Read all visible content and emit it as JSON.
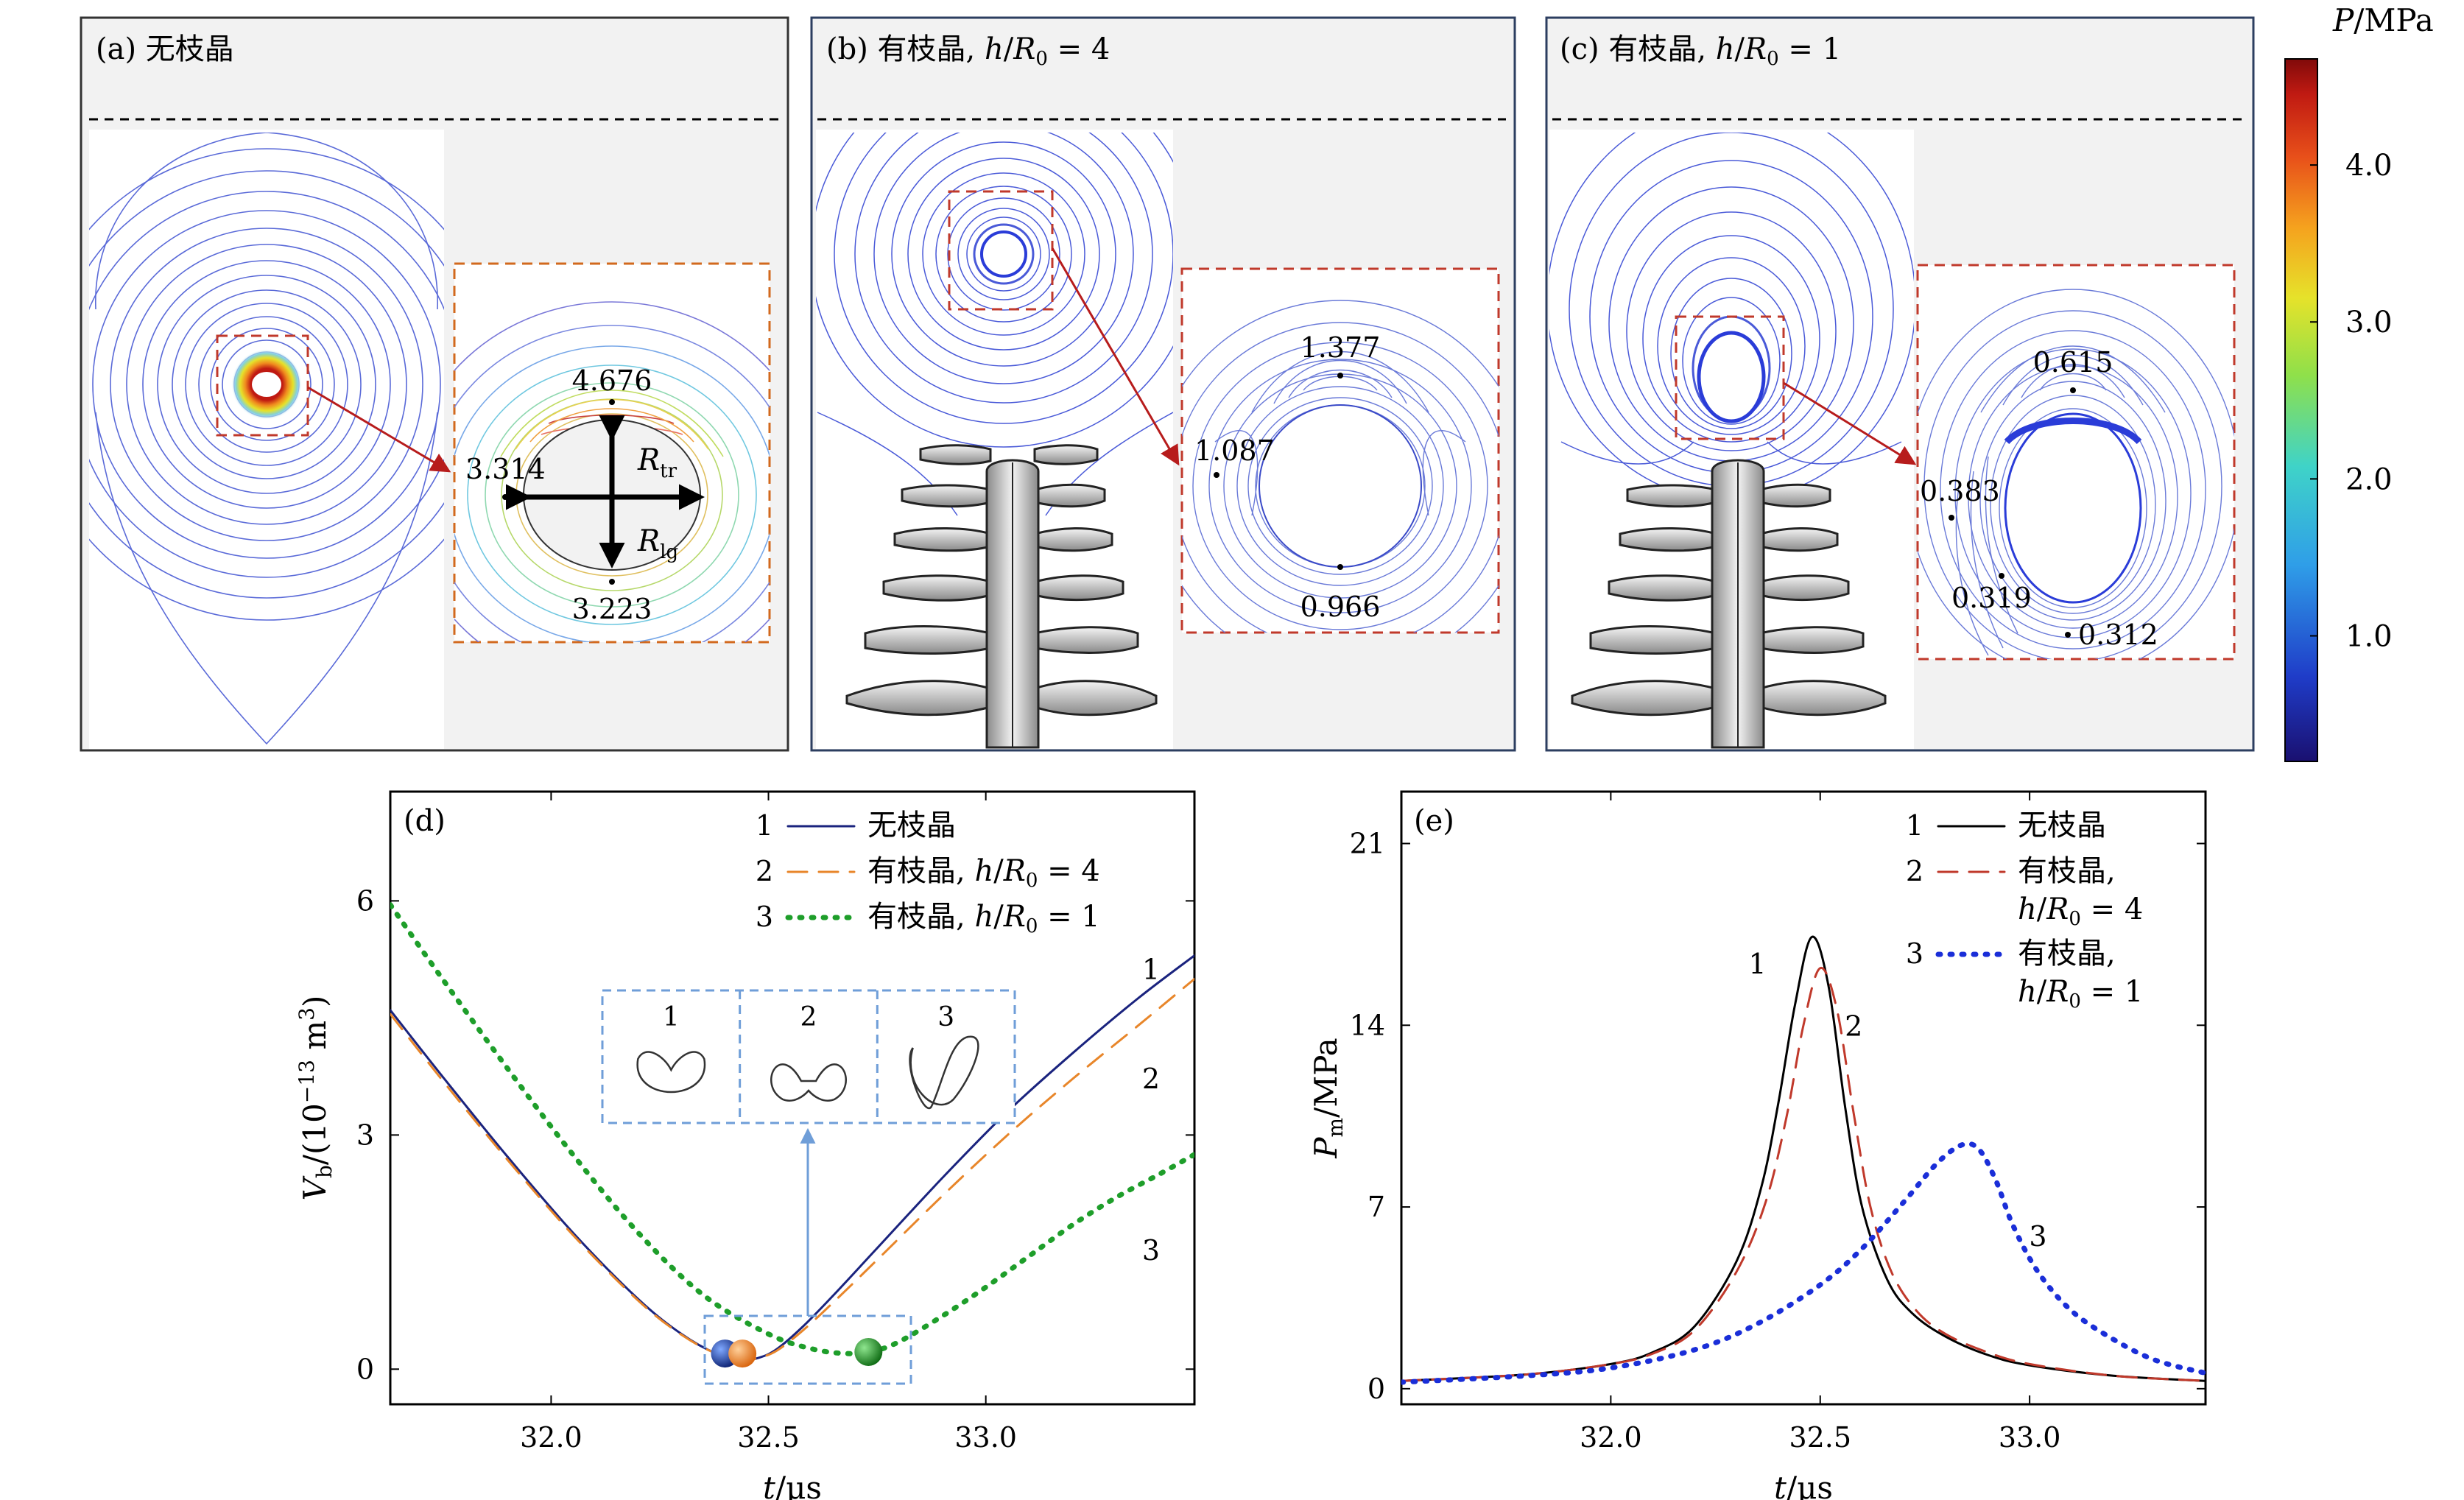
{
  "panels": {
    "a": {
      "label": "(a) 无枝晶",
      "inset_max_label": "4.676",
      "inset_left_label": "3.314",
      "inset_bottom_label": "3.223",
      "r_tr_main": "R",
      "r_tr_sub": "tr",
      "r_lg_main": "R",
      "r_lg_sub": "lg"
    },
    "b": {
      "label_prefix": "(b) 有枝晶, ",
      "ratio_h": "h",
      "ratio_R": "R",
      "ratio_sub": "0",
      "ratio_value": " = 4",
      "inset_top_label": "1.377",
      "inset_left_label": "1.087",
      "inset_bottom_label": "0.966"
    },
    "c": {
      "label_prefix": "(c) 有枝晶, ",
      "ratio_h": "h",
      "ratio_R": "R",
      "ratio_sub": "0",
      "ratio_value": " = 1",
      "inset_top_label": "0.615",
      "inset_left_label": "0.383",
      "inset_mid_label": "0.319",
      "inset_bottom_label": "0.312"
    }
  },
  "colorbar": {
    "title_var": "P",
    "title_unit": "/MPa",
    "ticks": [
      "1.0",
      "2.0",
      "3.0",
      "4.0"
    ],
    "tick_values": [
      1.0,
      2.0,
      3.0,
      4.0
    ],
    "min": 0.2,
    "max": 4.676
  },
  "chart_data": [
    {
      "panel": "(d)",
      "type": "line",
      "xlabel_var": "t",
      "xlabel_unit": "/μs",
      "ylabel_var": "V",
      "ylabel_sub": "b",
      "ylabel_unit": "/(10",
      "ylabel_exp": "−13",
      "ylabel_tail": " m",
      "ylabel_tail_exp": "3",
      "ylabel_close": ")",
      "xlim": [
        31.63,
        33.48
      ],
      "ylim": [
        -0.45,
        7.4
      ],
      "xticks": [
        32.0,
        32.5,
        33.0
      ],
      "xtick_labels": [
        "32.0",
        "32.5",
        "33.0"
      ],
      "yticks": [
        0,
        3,
        6
      ],
      "ytick_labels": [
        "0",
        "3",
        "6"
      ],
      "legend": [
        {
          "num": "1",
          "text": "无枝晶"
        },
        {
          "num": "2",
          "text": "有枝晶, ",
          "ratio": "h/R0 = 4",
          "ratio_value": " = 4"
        },
        {
          "num": "3",
          "text": "有枝晶, ",
          "ratio": "h/R0 = 1",
          "ratio_value": " = 1"
        }
      ],
      "curve_labels": [
        "1",
        "2",
        "3"
      ],
      "inset_labels": [
        "1",
        "2",
        "3"
      ],
      "series": [
        {
          "id": "1",
          "color": "#1a237e",
          "style": "solid",
          "x": [
            31.63,
            31.75,
            31.9,
            32.05,
            32.2,
            32.3,
            32.38,
            32.44,
            32.48,
            32.52,
            32.58,
            32.65,
            32.75,
            32.9,
            33.05,
            33.2,
            33.35,
            33.48
          ],
          "y": [
            4.6,
            3.75,
            2.72,
            1.75,
            0.9,
            0.45,
            0.2,
            0.12,
            0.15,
            0.26,
            0.55,
            0.95,
            1.55,
            2.45,
            3.3,
            4.05,
            4.75,
            5.3
          ]
        },
        {
          "id": "2",
          "color": "#e8862a",
          "style": "dashed",
          "x": [
            31.63,
            31.75,
            31.9,
            32.05,
            32.2,
            32.3,
            32.38,
            32.44,
            32.48,
            32.52,
            32.58,
            32.65,
            32.75,
            32.9,
            33.05,
            33.2,
            33.35,
            33.48
          ],
          "y": [
            4.55,
            3.7,
            2.68,
            1.72,
            0.88,
            0.44,
            0.2,
            0.12,
            0.15,
            0.24,
            0.5,
            0.86,
            1.4,
            2.22,
            3.0,
            3.72,
            4.4,
            5.0
          ]
        },
        {
          "id": "3",
          "color": "#1e9e2a",
          "style": "dotted",
          "x": [
            31.63,
            31.75,
            31.9,
            32.05,
            32.2,
            32.35,
            32.5,
            32.6,
            32.68,
            32.74,
            32.8,
            32.9,
            33.0,
            33.1,
            33.2,
            33.3,
            33.4,
            33.48
          ],
          "y": [
            5.95,
            5.0,
            3.85,
            2.75,
            1.75,
            0.95,
            0.45,
            0.26,
            0.2,
            0.23,
            0.35,
            0.68,
            1.05,
            1.45,
            1.85,
            2.2,
            2.5,
            2.75
          ]
        }
      ],
      "markers": [
        {
          "x": 32.4,
          "y": 0.2,
          "color": "#1a3c8f"
        },
        {
          "x": 32.44,
          "y": 0.2,
          "color": "#f0862a"
        },
        {
          "x": 32.73,
          "y": 0.22,
          "color": "#1e9e2a"
        }
      ]
    },
    {
      "panel": "(e)",
      "type": "line",
      "xlabel_var": "t",
      "xlabel_unit": "/μs",
      "ylabel_var": "P",
      "ylabel_sub": "m",
      "ylabel_unit": "/MPa",
      "xlim": [
        31.5,
        33.42
      ],
      "ylim": [
        -0.6,
        23
      ],
      "xticks": [
        32.0,
        32.5,
        33.0
      ],
      "xtick_labels": [
        "32.0",
        "32.5",
        "33.0"
      ],
      "yticks": [
        0,
        7,
        14,
        21
      ],
      "ytick_labels": [
        "0",
        "7",
        "14",
        "21"
      ],
      "legend": [
        {
          "num": "1",
          "text": "无枝晶"
        },
        {
          "num": "2",
          "text": "有枝晶,",
          "ratio": "h/R0 = 4",
          "ratio_value": " = 4"
        },
        {
          "num": "3",
          "text": "有枝晶,",
          "ratio": "h/R0 = 1",
          "ratio_value": " = 1"
        }
      ],
      "curve_labels": [
        "1",
        "2",
        "3"
      ],
      "series": [
        {
          "id": "1",
          "color": "#000000",
          "style": "solid",
          "x": [
            31.5,
            31.8,
            32.0,
            32.1,
            32.2,
            32.3,
            32.36,
            32.4,
            32.44,
            32.48,
            32.52,
            32.56,
            32.6,
            32.66,
            32.72,
            32.8,
            32.9,
            33.0,
            33.2,
            33.42
          ],
          "y": [
            0.3,
            0.55,
            0.95,
            1.4,
            2.4,
            4.9,
            7.8,
            11.0,
            14.8,
            17.4,
            15.5,
            10.8,
            7.0,
            4.2,
            2.9,
            2.0,
            1.3,
            0.9,
            0.5,
            0.3
          ]
        },
        {
          "id": "2",
          "color": "#c0392b",
          "style": "dashed",
          "x": [
            31.5,
            31.8,
            32.0,
            32.1,
            32.2,
            32.3,
            32.37,
            32.42,
            32.46,
            32.5,
            32.54,
            32.58,
            32.62,
            32.67,
            32.73,
            32.8,
            32.9,
            33.0,
            33.2,
            33.42
          ],
          "y": [
            0.3,
            0.55,
            0.95,
            1.35,
            2.25,
            4.5,
            7.2,
            10.5,
            14.0,
            16.2,
            14.6,
            10.6,
            7.0,
            4.5,
            3.0,
            2.1,
            1.4,
            0.95,
            0.5,
            0.3
          ]
        },
        {
          "id": "3",
          "color": "#1a2ed8",
          "style": "dotted",
          "x": [
            31.5,
            31.8,
            32.0,
            32.2,
            32.35,
            32.5,
            32.6,
            32.7,
            32.78,
            32.84,
            32.88,
            32.92,
            32.96,
            33.02,
            33.1,
            33.2,
            33.3,
            33.42
          ],
          "y": [
            0.25,
            0.5,
            0.8,
            1.5,
            2.5,
            4.0,
            5.4,
            7.2,
            8.7,
            9.4,
            9.2,
            8.0,
            6.3,
            4.5,
            3.0,
            1.9,
            1.1,
            0.6
          ]
        }
      ]
    }
  ]
}
